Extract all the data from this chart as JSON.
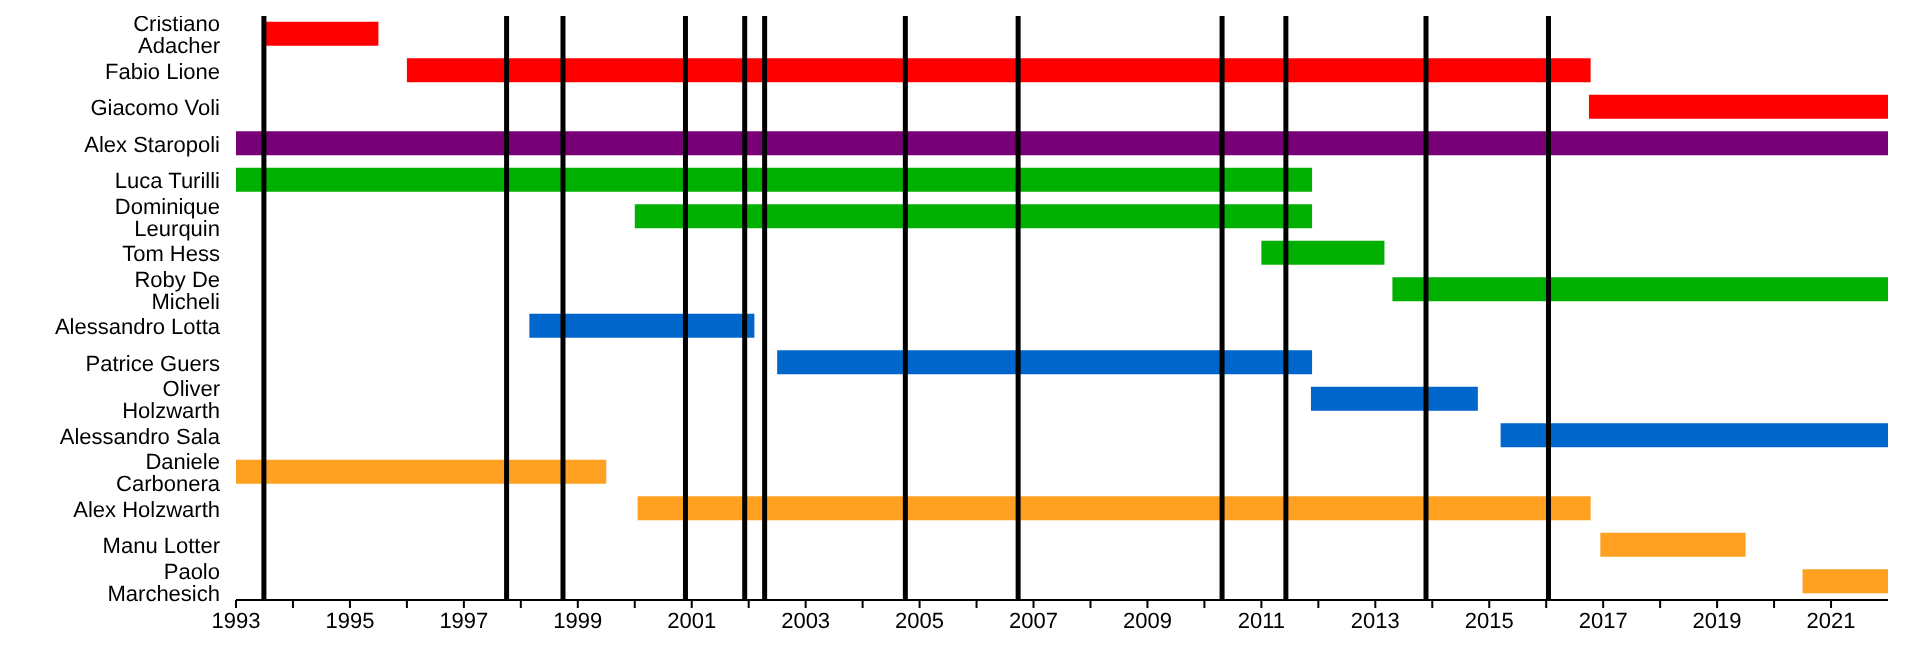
{
  "chart_data": {
    "type": "bar",
    "orientation": "horizontal",
    "categories": [
      "Cristiano Adacher",
      "Fabio Lione",
      "Giacomo Voli",
      "Alex Staropoli",
      "Luca Turilli",
      "Dominique Leurquin",
      "Tom Hess",
      "Roby De Micheli",
      "Alessandro Lotta",
      "Patrice Guers",
      "Oliver Holzwarth",
      "Alessandro Sala",
      "Daniele Carbonera",
      "Alex Holzwarth",
      "Manu Lotter",
      "Paolo Marchesich"
    ],
    "base": [
      1993.5,
      1996.0,
      2016.75,
      1993.0,
      1993.0,
      2000.0,
      2011.0,
      2013.3,
      1998.15,
      2002.5,
      2011.87,
      2015.2,
      1993.0,
      2000.05,
      2016.95,
      2020.5
    ],
    "values": [
      2.0,
      20.78,
      5.25,
      29.0,
      18.89,
      11.89,
      2.16,
      8.7,
      3.95,
      9.39,
      2.93,
      6.8,
      6.5,
      16.73,
      2.55,
      1.5
    ],
    "colors": [
      "#ff0000",
      "#ff0000",
      "#ff0000",
      "#770077",
      "#00b000",
      "#00b000",
      "#00b000",
      "#00b000",
      "#0066cc",
      "#0066cc",
      "#0066cc",
      "#0066cc",
      "#ffa020",
      "#ffa020",
      "#ffa020",
      "#ffa020"
    ],
    "xlim": [
      1993,
      2022
    ],
    "xticks": [
      1993,
      {
        "value": 1994,
        "label": null
      },
      1995,
      {
        "value": 1996,
        "label": null
      },
      1997,
      {
        "value": 1998,
        "label": null
      },
      1999,
      {
        "value": 2000,
        "label": null
      },
      2001,
      {
        "value": 2002,
        "label": null
      },
      2003,
      {
        "value": 2004,
        "label": null
      },
      2005,
      {
        "value": 2006,
        "label": null
      },
      2007,
      {
        "value": 2008,
        "label": null
      },
      2009,
      {
        "value": 2010,
        "label": null
      },
      2011,
      {
        "value": 2012,
        "label": null
      },
      2013,
      {
        "value": 2014,
        "label": null
      },
      2015,
      {
        "value": 2016,
        "label": null
      },
      2017,
      {
        "value": 2018,
        "label": null
      },
      2019,
      {
        "value": 2020,
        "label": null
      },
      2021
    ],
    "ref_lines": [
      {
        "axis": "x",
        "value": 1993.49,
        "color": "#000000"
      },
      {
        "axis": "x",
        "value": 1997.75,
        "color": "#000000"
      },
      {
        "axis": "x",
        "value": 1998.74,
        "color": "#000000"
      },
      {
        "axis": "x",
        "value": 2000.89,
        "color": "#000000"
      },
      {
        "axis": "x",
        "value": 2001.93,
        "color": "#000000"
      },
      {
        "axis": "x",
        "value": 2002.28,
        "color": "#000000"
      },
      {
        "axis": "x",
        "value": 2004.75,
        "color": "#000000"
      },
      {
        "axis": "x",
        "value": 2006.73,
        "color": "#000000"
      },
      {
        "axis": "x",
        "value": 2010.31,
        "color": "#000000"
      },
      {
        "axis": "x",
        "value": 2011.43,
        "color": "#000000"
      },
      {
        "axis": "x",
        "value": 2013.89,
        "color": "#000000"
      },
      {
        "axis": "x",
        "value": 2016.04,
        "color": "#000000"
      }
    ]
  }
}
